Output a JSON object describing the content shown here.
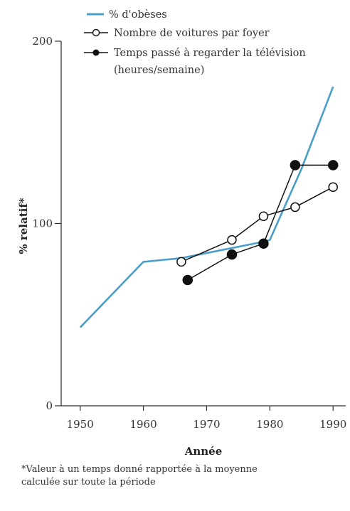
{
  "chart_data": {
    "type": "line",
    "title": "",
    "xlabel": "Année",
    "ylabel": "% relatif*",
    "xlim": [
      1947,
      1992
    ],
    "ylim": [
      0,
      200
    ],
    "x_ticks": [
      1950,
      1960,
      1970,
      1980,
      1990
    ],
    "y_ticks": [
      0,
      100,
      200
    ],
    "grid": false,
    "legend_position": "top",
    "series": [
      {
        "name": "% d'obèses",
        "style": "line",
        "color": "#4a9ec9",
        "x": [
          1950,
          1960,
          1966,
          1979,
          1980,
          1985,
          1990
        ],
        "y": [
          43,
          79,
          81,
          90,
          91,
          130,
          175
        ]
      },
      {
        "name": "Nombre de voitures par foyer",
        "style": "line-open-markers",
        "color": "#111111",
        "x": [
          1966,
          1974,
          1979,
          1984,
          1990
        ],
        "y": [
          79,
          91,
          104,
          109,
          120
        ]
      },
      {
        "name": "Temps passé à regarder la télévision (heures/semaine)",
        "style": "line-filled-markers",
        "color": "#111111",
        "x": [
          1967,
          1974,
          1979,
          1984,
          1990
        ],
        "y": [
          69,
          83,
          89,
          132,
          132
        ]
      }
    ],
    "legend_lines": [
      "% d'obèses",
      "Nombre de voitures par foyer",
      "Temps passé à regarder la télévision",
      "(heures/semaine)"
    ],
    "footnote_lines": [
      "*Valeur à un temps donné rapportée à la moyenne",
      "calculée sur toute la période"
    ]
  }
}
